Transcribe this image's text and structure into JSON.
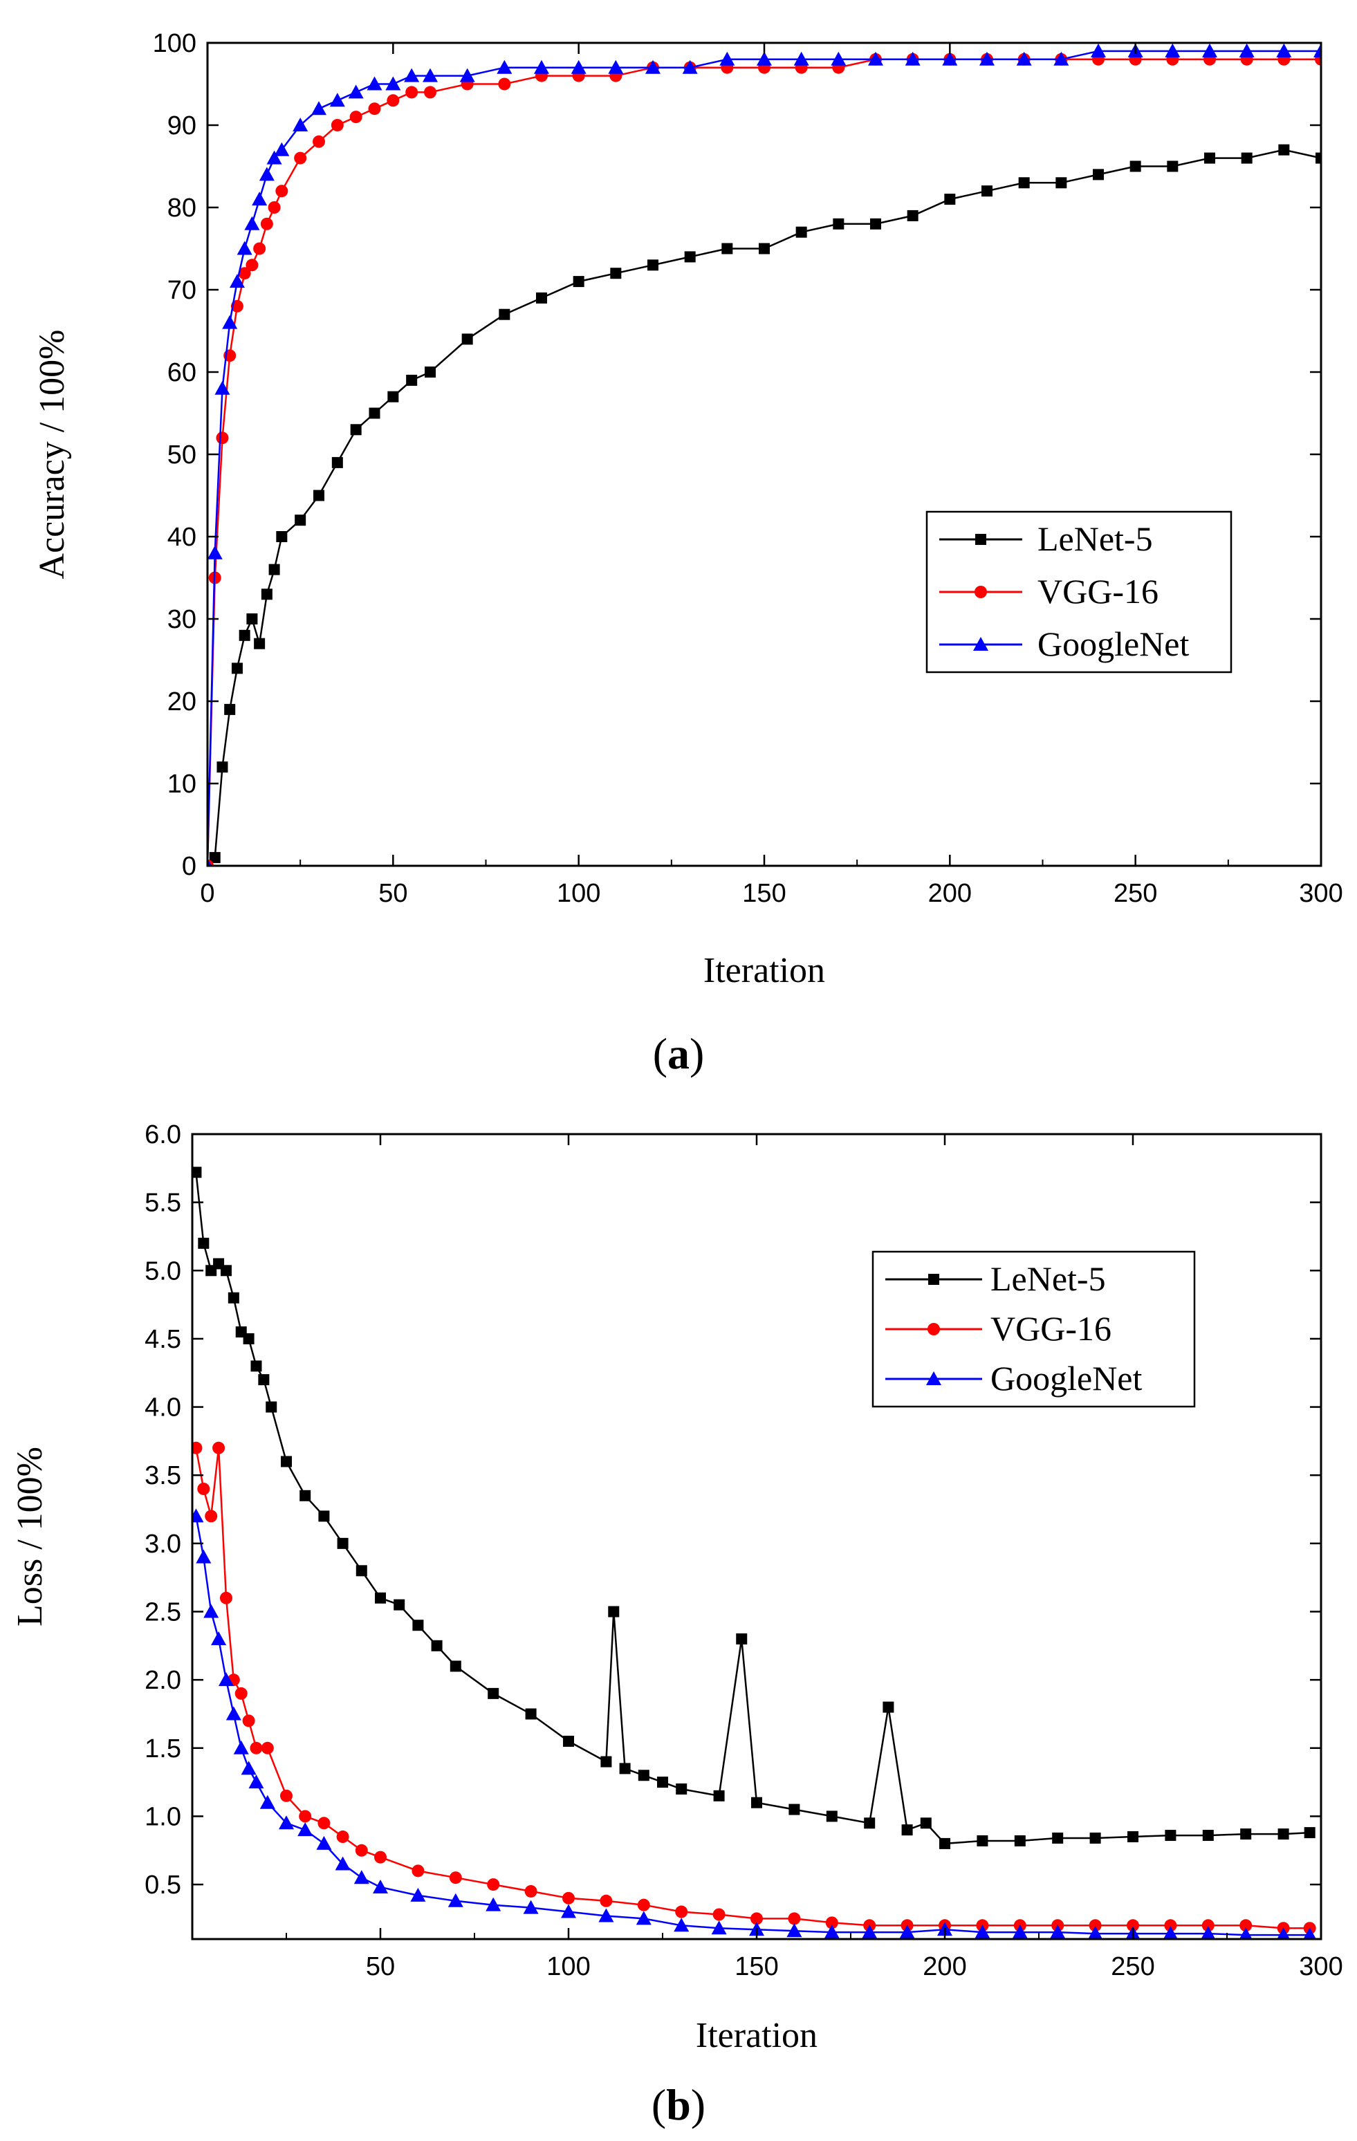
{
  "chart_data": [
    {
      "type": "line",
      "panel_label": "(a)",
      "panel_label_parts": {
        "open": "(",
        "letter": "a",
        "close": ")"
      },
      "xlabel": "Iteration",
      "ylabel": "Accuracy / 100%",
      "xlim": [
        0,
        300
      ],
      "ylim": [
        0,
        100
      ],
      "xticks": [
        0,
        50,
        100,
        150,
        200,
        250,
        300
      ],
      "yticks": [
        0,
        10,
        20,
        30,
        40,
        50,
        60,
        70,
        80,
        90,
        100
      ],
      "legend_position": "center-right",
      "series": [
        {
          "name": "LeNet-5",
          "color": "#000000",
          "marker": "square",
          "x": [
            0,
            2,
            4,
            6,
            8,
            10,
            12,
            14,
            16,
            18,
            20,
            25,
            30,
            35,
            40,
            45,
            50,
            55,
            60,
            70,
            80,
            90,
            100,
            110,
            120,
            130,
            140,
            150,
            160,
            170,
            180,
            190,
            200,
            210,
            220,
            230,
            240,
            250,
            260,
            270,
            280,
            290,
            300
          ],
          "y": [
            0,
            1,
            12,
            19,
            24,
            28,
            30,
            27,
            33,
            36,
            40,
            42,
            45,
            49,
            53,
            55,
            57,
            59,
            60,
            64,
            67,
            69,
            71,
            72,
            73,
            74,
            75,
            75,
            77,
            78,
            78,
            79,
            81,
            82,
            83,
            83,
            84,
            85,
            85,
            86,
            86,
            87,
            86
          ]
        },
        {
          "name": "VGG-16",
          "color": "#ff0000",
          "marker": "circle",
          "x": [
            0,
            2,
            4,
            6,
            8,
            10,
            12,
            14,
            16,
            18,
            20,
            25,
            30,
            35,
            40,
            45,
            50,
            55,
            60,
            70,
            80,
            90,
            100,
            110,
            120,
            130,
            140,
            150,
            160,
            170,
            180,
            190,
            200,
            210,
            220,
            230,
            240,
            250,
            260,
            270,
            280,
            290,
            300
          ],
          "y": [
            0,
            35,
            52,
            62,
            68,
            72,
            73,
            75,
            78,
            80,
            82,
            86,
            88,
            90,
            91,
            92,
            93,
            94,
            94,
            95,
            95,
            96,
            96,
            96,
            97,
            97,
            97,
            97,
            97,
            97,
            98,
            98,
            98,
            98,
            98,
            98,
            98,
            98,
            98,
            98,
            98,
            98,
            98
          ]
        },
        {
          "name": "GoogleNet",
          "color": "#0000ff",
          "marker": "triangle",
          "x": [
            0,
            2,
            4,
            6,
            8,
            10,
            12,
            14,
            16,
            18,
            20,
            25,
            30,
            35,
            40,
            45,
            50,
            55,
            60,
            70,
            80,
            90,
            100,
            110,
            120,
            130,
            140,
            150,
            160,
            170,
            180,
            190,
            200,
            210,
            220,
            230,
            240,
            250,
            260,
            270,
            280,
            290,
            300
          ],
          "y": [
            0,
            38,
            58,
            66,
            71,
            75,
            78,
            81,
            84,
            86,
            87,
            90,
            92,
            93,
            94,
            95,
            95,
            96,
            96,
            96,
            97,
            97,
            97,
            97,
            97,
            97,
            98,
            98,
            98,
            98,
            98,
            98,
            98,
            98,
            98,
            98,
            99,
            99,
            99,
            99,
            99,
            99,
            99
          ]
        }
      ]
    },
    {
      "type": "line",
      "panel_label": "(b)",
      "panel_label_parts": {
        "open": "(",
        "letter": "b",
        "close": ")"
      },
      "xlabel": "Iteration",
      "ylabel": "Loss / 100%",
      "xlim": [
        0,
        300
      ],
      "ylim": [
        0.1,
        6.0
      ],
      "xticks": [
        50,
        100,
        150,
        200,
        250,
        300
      ],
      "yticks": [
        0.5,
        1.0,
        1.5,
        2.0,
        2.5,
        3.0,
        3.5,
        4.0,
        4.5,
        5.0,
        5.5,
        6.0
      ],
      "ytick_labels": [
        "0.5",
        "1.0",
        "1.5",
        "2.0",
        "2.5",
        "3.0",
        "3.5",
        "4.0",
        "4.5",
        "5.0",
        "5.5",
        "6.0"
      ],
      "legend_position": "top-right",
      "series": [
        {
          "name": "LeNet-5",
          "color": "#000000",
          "marker": "square",
          "x": [
            1,
            3,
            5,
            7,
            9,
            11,
            13,
            15,
            17,
            19,
            21,
            25,
            30,
            35,
            40,
            45,
            50,
            55,
            60,
            65,
            70,
            80,
            90,
            100,
            110,
            112,
            115,
            120,
            125,
            130,
            140,
            146,
            150,
            160,
            170,
            180,
            185,
            190,
            195,
            200,
            210,
            220,
            230,
            240,
            250,
            260,
            270,
            280,
            290,
            297
          ],
          "y": [
            5.72,
            5.2,
            5.0,
            5.05,
            5.0,
            4.8,
            4.55,
            4.5,
            4.3,
            4.2,
            4.0,
            3.6,
            3.35,
            3.2,
            3.0,
            2.8,
            2.6,
            2.55,
            2.4,
            2.25,
            2.1,
            1.9,
            1.75,
            1.55,
            1.4,
            2.5,
            1.35,
            1.3,
            1.25,
            1.2,
            1.15,
            2.3,
            1.1,
            1.05,
            1.0,
            0.95,
            1.8,
            0.9,
            0.95,
            0.8,
            0.82,
            0.82,
            0.84,
            0.84,
            0.85,
            0.86,
            0.86,
            0.87,
            0.87,
            0.88
          ]
        },
        {
          "name": "VGG-16",
          "color": "#ff0000",
          "marker": "circle",
          "x": [
            1,
            3,
            5,
            7,
            9,
            11,
            13,
            15,
            17,
            20,
            25,
            30,
            35,
            40,
            45,
            50,
            60,
            70,
            80,
            90,
            100,
            110,
            120,
            130,
            140,
            150,
            160,
            170,
            180,
            190,
            200,
            210,
            220,
            230,
            240,
            250,
            260,
            270,
            280,
            290,
            297
          ],
          "y": [
            3.7,
            3.4,
            3.2,
            3.7,
            2.6,
            2.0,
            1.9,
            1.7,
            1.5,
            1.5,
            1.15,
            1.0,
            0.95,
            0.85,
            0.75,
            0.7,
            0.6,
            0.55,
            0.5,
            0.45,
            0.4,
            0.38,
            0.35,
            0.3,
            0.28,
            0.25,
            0.25,
            0.22,
            0.2,
            0.2,
            0.2,
            0.2,
            0.2,
            0.2,
            0.2,
            0.2,
            0.2,
            0.2,
            0.2,
            0.18,
            0.18
          ]
        },
        {
          "name": "GoogleNet",
          "color": "#0000ff",
          "marker": "triangle",
          "x": [
            1,
            3,
            5,
            7,
            9,
            11,
            13,
            15,
            17,
            20,
            25,
            30,
            35,
            40,
            45,
            50,
            60,
            70,
            80,
            90,
            100,
            110,
            120,
            130,
            140,
            150,
            160,
            170,
            180,
            190,
            200,
            210,
            220,
            230,
            240,
            250,
            260,
            270,
            280,
            290,
            297
          ],
          "y": [
            3.2,
            2.9,
            2.5,
            2.3,
            2.0,
            1.75,
            1.5,
            1.35,
            1.25,
            1.1,
            0.95,
            0.9,
            0.8,
            0.65,
            0.55,
            0.48,
            0.42,
            0.38,
            0.35,
            0.33,
            0.3,
            0.27,
            0.25,
            0.2,
            0.18,
            0.17,
            0.16,
            0.15,
            0.15,
            0.15,
            0.17,
            0.15,
            0.15,
            0.15,
            0.14,
            0.14,
            0.14,
            0.14,
            0.13,
            0.13,
            0.13
          ]
        }
      ]
    }
  ]
}
